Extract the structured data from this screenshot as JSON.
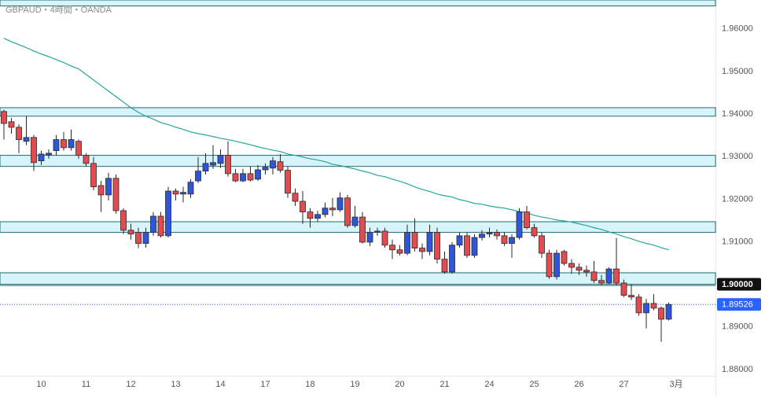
{
  "chart_data": {
    "type": "candlestick",
    "title": "GBPAUD・4時間・OANDA",
    "categories": [
      null,
      null,
      null,
      null,
      null,
      "10",
      null,
      null,
      null,
      null,
      null,
      "11",
      null,
      null,
      null,
      null,
      null,
      "12",
      null,
      null,
      null,
      null,
      null,
      "13",
      null,
      null,
      null,
      null,
      null,
      "14",
      null,
      null,
      null,
      null,
      null,
      "17",
      null,
      null,
      null,
      null,
      null,
      "18",
      null,
      null,
      null,
      null,
      null,
      "19",
      null,
      null,
      null,
      null,
      null,
      "20",
      null,
      null,
      null,
      null,
      null,
      "21",
      null,
      null,
      null,
      null,
      null,
      "24",
      null,
      null,
      null,
      null,
      null,
      "25",
      null,
      null,
      null,
      null,
      null,
      "26",
      null,
      null,
      null,
      null,
      null,
      "27",
      null,
      null,
      null,
      null,
      null,
      null,
      "3月"
    ],
    "candles": {
      "open": [
        1.9406,
        1.9382,
        1.9369,
        1.9336,
        1.9345,
        1.929,
        1.9304,
        1.9314,
        1.934,
        1.9321,
        1.9336,
        1.9303,
        1.9284,
        1.9232,
        1.921,
        1.9249,
        1.9173,
        1.9127,
        1.9122,
        1.9096,
        1.9122,
        1.916,
        1.9114,
        1.9219,
        1.9212,
        1.9212,
        1.9243,
        1.9266,
        1.928,
        1.9284,
        1.9303,
        1.926,
        1.9243,
        1.926,
        1.9247,
        1.9269,
        1.9273,
        1.9288,
        1.9268,
        1.9214,
        1.9195,
        1.917,
        1.9155,
        1.9164,
        1.9179,
        1.9175,
        1.9203,
        1.9138,
        1.9158,
        1.9099,
        1.9122,
        1.9125,
        1.9092,
        1.9081,
        1.9073,
        1.9122,
        1.9085,
        1.9077,
        1.9122,
        1.9059,
        1.9029,
        1.9092,
        1.9114,
        1.9068,
        1.911,
        1.9118,
        1.9122,
        1.9114,
        1.9096,
        1.911,
        1.917,
        1.9133,
        1.9114,
        1.9073,
        1.9018,
        1.9077,
        1.9049,
        1.904,
        1.9033,
        1.9029,
        1.9009,
        1.9003,
        1.9036,
        1.9003,
        1.8974,
        1.897,
        1.8933,
        1.8955,
        1.8944,
        1.8918,
        null
      ],
      "high": [
        1.941,
        1.9391,
        1.9376,
        1.9395,
        1.9351,
        1.9314,
        1.9317,
        1.9351,
        1.9358,
        1.9364,
        1.934,
        1.9308,
        1.9299,
        1.9243,
        1.9262,
        1.9258,
        1.9179,
        1.9142,
        1.9133,
        1.9133,
        1.917,
        1.917,
        1.9229,
        1.9225,
        1.9229,
        1.9247,
        1.9299,
        1.9308,
        1.9327,
        1.9317,
        1.9336,
        1.9271,
        1.9271,
        1.9277,
        1.928,
        1.9284,
        1.9299,
        1.9306,
        1.9277,
        1.9225,
        1.9219,
        1.9179,
        1.9173,
        1.9192,
        1.9203,
        1.9216,
        1.921,
        1.9184,
        1.917,
        1.9133,
        1.9133,
        1.9133,
        1.9105,
        1.9092,
        1.914,
        1.9155,
        1.9096,
        1.914,
        1.9133,
        1.9077,
        1.9099,
        1.9122,
        1.9122,
        1.9118,
        1.9127,
        1.9133,
        1.9129,
        1.9123,
        1.9118,
        1.9179,
        1.9184,
        1.9142,
        1.9122,
        1.9081,
        1.9081,
        1.9081,
        1.9059,
        1.9049,
        1.9044,
        1.9055,
        1.9022,
        1.904,
        1.9109,
        1.9011,
        1.9,
        1.8977,
        1.8966,
        1.8977,
        1.8948,
        1.8957,
        null
      ],
      "low": [
        1.934,
        1.9354,
        1.9308,
        1.9327,
        1.9266,
        1.928,
        1.9295,
        1.9303,
        1.9314,
        1.9314,
        1.9295,
        1.9277,
        1.9221,
        1.917,
        1.9197,
        1.9166,
        1.9118,
        1.9105,
        1.9085,
        1.9086,
        1.9114,
        1.911,
        1.911,
        1.9197,
        1.9192,
        1.9203,
        1.9238,
        1.9258,
        1.9271,
        1.9273,
        1.9253,
        1.924,
        1.924,
        1.9242,
        1.9243,
        1.9258,
        1.9258,
        1.9262,
        1.9203,
        1.9184,
        1.9142,
        1.9133,
        1.9146,
        1.9157,
        1.916,
        1.917,
        1.9133,
        1.9133,
        1.9096,
        1.909,
        1.9114,
        1.9086,
        1.9059,
        1.9068,
        1.9068,
        1.9077,
        1.9059,
        1.9068,
        1.9049,
        1.9025,
        1.9025,
        1.9086,
        1.9062,
        1.9062,
        1.9103,
        1.911,
        1.9105,
        1.909,
        1.9062,
        1.9105,
        1.9129,
        1.911,
        1.9062,
        1.9013,
        1.9011,
        1.9044,
        1.9025,
        1.9022,
        1.9018,
        1.9003,
        1.8998,
        1.9,
        1.8998,
        1.897,
        1.8963,
        1.8926,
        1.8896,
        1.8939,
        1.8865,
        1.8915,
        null
      ],
      "close": [
        1.9378,
        1.9369,
        1.934,
        1.9345,
        1.9286,
        1.9306,
        1.9308,
        1.934,
        1.9321,
        1.934,
        1.9303,
        1.9284,
        1.9229,
        1.921,
        1.9249,
        1.9173,
        1.9127,
        1.9118,
        1.9096,
        1.9122,
        1.916,
        1.9114,
        1.9219,
        1.9212,
        1.9216,
        1.924,
        1.9266,
        1.9284,
        1.9286,
        1.9303,
        1.926,
        1.9243,
        1.926,
        1.9245,
        1.9269,
        1.9275,
        1.929,
        1.9268,
        1.9214,
        1.9195,
        1.917,
        1.9155,
        1.9164,
        1.9179,
        1.9175,
        1.9203,
        1.9138,
        1.9158,
        1.9099,
        1.9122,
        1.9125,
        1.9092,
        1.9081,
        1.9073,
        1.9122,
        1.9085,
        1.9077,
        1.9122,
        1.9059,
        1.9029,
        1.9092,
        1.9114,
        1.9068,
        1.911,
        1.9118,
        1.9122,
        1.9114,
        1.9096,
        1.911,
        1.917,
        1.9133,
        1.9114,
        1.9073,
        1.9018,
        1.9073,
        1.9049,
        1.904,
        1.9033,
        1.9029,
        1.9009,
        1.9003,
        1.9036,
        1.9003,
        1.8974,
        1.897,
        1.8933,
        1.8955,
        1.8944,
        1.8918,
        1.89526,
        null
      ]
    },
    "up_color": "#2f56d8",
    "down_color": "#e24b4f",
    "ma": {
      "color": "#26a69a",
      "values": [
        1.9578,
        1.957,
        1.9563,
        1.9556,
        1.9548,
        1.9541,
        1.9535,
        1.9528,
        1.9521,
        1.9513,
        1.9506,
        1.9493,
        1.948,
        1.9467,
        1.9454,
        1.9441,
        1.9428,
        1.9415,
        1.9404,
        1.9395,
        1.9388,
        1.938,
        1.9375,
        1.9369,
        1.9364,
        1.9358,
        1.9354,
        1.9351,
        1.9347,
        1.9343,
        1.934,
        1.9336,
        1.9332,
        1.9328,
        1.9323,
        1.9319,
        1.9315,
        1.9312,
        1.9306,
        1.9303,
        1.9299,
        1.9295,
        1.9292,
        1.9288,
        1.9282,
        1.9279,
        1.9275,
        1.9271,
        1.9266,
        1.9262,
        1.9256,
        1.9253,
        1.9247,
        1.9242,
        1.9236,
        1.9229,
        1.9223,
        1.9218,
        1.9212,
        1.9208,
        1.9205,
        1.9199,
        1.9195,
        1.919,
        1.9188,
        1.9184,
        1.9181,
        1.9179,
        1.9175,
        1.9171,
        1.9168,
        1.9162,
        1.9158,
        1.9155,
        1.9151,
        1.9149,
        1.9146,
        1.9142,
        1.9138,
        1.9133,
        1.9129,
        1.9123,
        1.9118,
        1.9112,
        1.9107,
        1.9101,
        1.9096,
        1.9092,
        1.9086,
        1.9081,
        null
      ]
    },
    "zones": [
      [
        1.9668,
        1.9654
      ],
      [
        1.9415,
        1.9395
      ],
      [
        1.9303,
        1.9277
      ],
      [
        1.9147,
        1.9122
      ],
      [
        1.9027,
        1.9
      ]
    ],
    "zone_color": "#d6f4f9",
    "level_line": {
      "value": 1.9,
      "label": "1.90000"
    },
    "last_price": 1.89526,
    "last_price_color": "#2962ff",
    "ylim": [
      1.8785,
      1.9668
    ],
    "yticks": [
      {
        "value": 1.88,
        "label": "1.88000"
      },
      {
        "value": 1.89,
        "label": "1.89000"
      },
      {
        "value": 1.9,
        "label": "1.90000"
      },
      {
        "value": 1.91,
        "label": "1.91000"
      },
      {
        "value": 1.92,
        "label": "1.92000"
      },
      {
        "value": 1.93,
        "label": "1.93000"
      },
      {
        "value": 1.94,
        "label": "1.94000"
      },
      {
        "value": 1.95,
        "label": "1.95000"
      },
      {
        "value": 1.96,
        "label": "1.96000"
      }
    ],
    "grid": false
  }
}
